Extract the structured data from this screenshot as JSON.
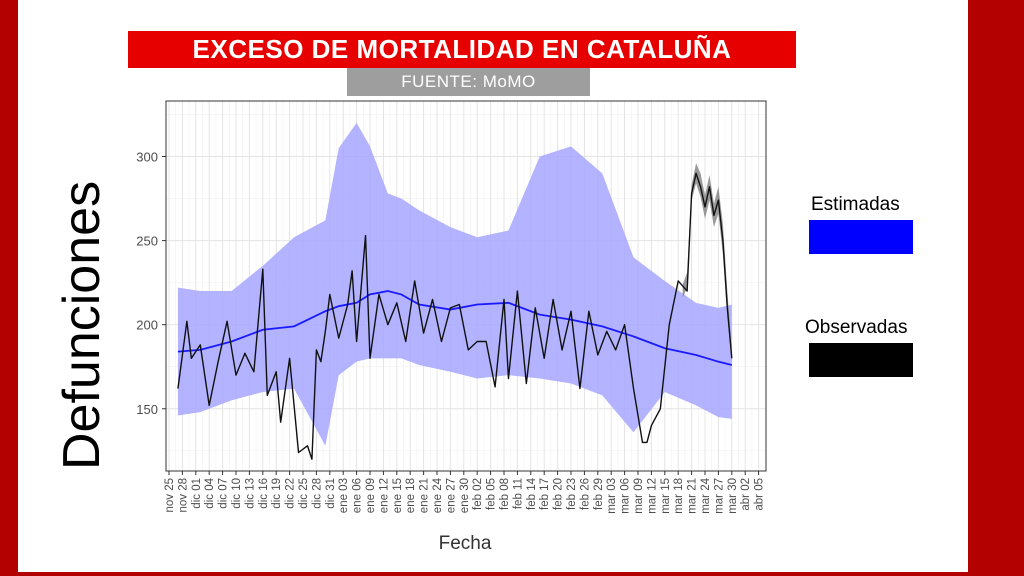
{
  "header": {
    "title": "EXCESO DE MORTALIDAD EN CATALUÑA",
    "source": "FUENTE: MoMO"
  },
  "colors": {
    "estimated_line": "#1a1aff",
    "estimated_band": "#a6a6ff",
    "observed_line": "#111111",
    "observed_band": "#777777",
    "title_bg": "#e60000",
    "frame": "#b30000"
  },
  "chart_data": {
    "type": "line",
    "title": "EXCESO DE MORTALIDAD EN CATALUÑA",
    "subtitle": "FUENTE: MoMO",
    "xlabel": "Fecha",
    "ylabel": "Defunciones",
    "ylim": [
      113,
      333
    ],
    "yticks": [
      150,
      200,
      250,
      300
    ],
    "grid": true,
    "legend_position": "right",
    "x_tick_labels": [
      "nov 25",
      "nov 28",
      "dic 01",
      "dic 04",
      "dic 07",
      "dic 10",
      "dic 13",
      "dic 16",
      "dic 19",
      "dic 22",
      "dic 25",
      "dic 28",
      "dic 31",
      "ene 03",
      "ene 06",
      "ene 09",
      "ene 12",
      "ene 15",
      "ene 18",
      "ene 21",
      "ene 24",
      "ene 27",
      "ene 30",
      "feb 02",
      "feb 05",
      "feb 08",
      "feb 11",
      "feb 14",
      "feb 17",
      "feb 20",
      "feb 23",
      "feb 26",
      "feb 29",
      "mar 03",
      "mar 06",
      "mar 09",
      "mar 12",
      "mar 15",
      "mar 18",
      "mar 21",
      "mar 24",
      "mar 27",
      "mar 30",
      "abr 02",
      "abr 05"
    ],
    "series": [
      {
        "name": "Estimadas",
        "dates": [
          "nov 27",
          "dic 03",
          "dic 10",
          "dic 17",
          "dic 24",
          "dic 31",
          "ene 03",
          "ene 07",
          "ene 10",
          "ene 14",
          "ene 17",
          "ene 21",
          "ene 28",
          "feb 03",
          "feb 10",
          "feb 17",
          "feb 24",
          "mar 02",
          "mar 09",
          "mar 16",
          "mar 23",
          "mar 28",
          "mar 31"
        ],
        "values": [
          184,
          185,
          190,
          197,
          199,
          208,
          211,
          213,
          218,
          220,
          218,
          212,
          209,
          212,
          213,
          206,
          203,
          199,
          193,
          186,
          182,
          178,
          176
        ],
        "lower": [
          146,
          148,
          155,
          160,
          162,
          128,
          170,
          178,
          180,
          180,
          180,
          176,
          172,
          168,
          170,
          168,
          165,
          158,
          136,
          160,
          152,
          145,
          144
        ],
        "upper": [
          222,
          220,
          220,
          235,
          252,
          262,
          305,
          320,
          306,
          278,
          275,
          268,
          258,
          252,
          256,
          300,
          306,
          290,
          240,
          226,
          213,
          210,
          212
        ]
      },
      {
        "name": "Observadas",
        "dates": [
          "nov 27",
          "nov 29",
          "dic 01",
          "dic 03",
          "dic 05",
          "dic 07",
          "dic 09",
          "dic 11",
          "dic 13",
          "dic 15",
          "dic 17",
          "dic 18",
          "dic 20",
          "dic 21",
          "dic 23",
          "dic 25",
          "dic 27",
          "dic 28",
          "dic 29",
          "dic 30",
          "dic 31",
          "ene 01",
          "ene 03",
          "ene 05",
          "ene 06",
          "ene 07",
          "ene 09",
          "ene 10",
          "ene 12",
          "ene 14",
          "ene 16",
          "ene 18",
          "ene 20",
          "ene 22",
          "ene 24",
          "ene 26",
          "ene 28",
          "ene 30",
          "feb 01",
          "feb 03",
          "feb 05",
          "feb 07",
          "feb 09",
          "feb 10",
          "feb 12",
          "feb 14",
          "feb 16",
          "feb 18",
          "feb 20",
          "feb 22",
          "feb 24",
          "feb 26",
          "feb 28",
          "mar 01",
          "mar 03",
          "mar 05",
          "mar 07",
          "mar 09",
          "mar 11",
          "mar 12",
          "mar 13",
          "mar 15",
          "mar 17",
          "mar 19",
          "mar 21",
          "mar 22",
          "mar 23",
          "mar 24",
          "mar 25",
          "mar 26",
          "mar 27",
          "mar 28",
          "mar 29",
          "mar 30",
          "mar 31"
        ],
        "values": [
          162,
          202,
          180,
          188,
          152,
          178,
          202,
          170,
          183,
          172,
          233,
          158,
          172,
          142,
          180,
          124,
          128,
          120,
          185,
          178,
          196,
          218,
          192,
          212,
          232,
          190,
          253,
          180,
          218,
          200,
          213,
          190,
          226,
          195,
          215,
          190,
          210,
          212,
          185,
          190,
          190,
          163,
          215,
          168,
          220,
          165,
          210,
          180,
          215,
          185,
          208,
          162,
          208,
          182,
          196,
          185,
          200,
          162,
          130,
          130,
          140,
          150,
          200,
          226,
          220,
          278,
          290,
          282,
          270,
          282,
          265,
          274,
          250,
          210,
          180
        ],
        "band_dates": [
          "mar 20",
          "mar 21",
          "mar 22",
          "mar 23",
          "mar 24",
          "mar 25",
          "mar 26",
          "mar 27",
          "mar 28",
          "mar 29",
          "mar 30",
          "mar 31"
        ],
        "band_lower": [
          216,
          222,
          274,
          284,
          276,
          263,
          274,
          258,
          266,
          242,
          204,
          178
        ],
        "band_upper": [
          224,
          231,
          283,
          296,
          290,
          277,
          289,
          272,
          282,
          260,
          220,
          184
        ]
      }
    ]
  },
  "legend": {
    "items": [
      {
        "label": "Estimadas",
        "color": "#0000ff"
      },
      {
        "label": "Observadas",
        "color": "#000000"
      }
    ]
  }
}
